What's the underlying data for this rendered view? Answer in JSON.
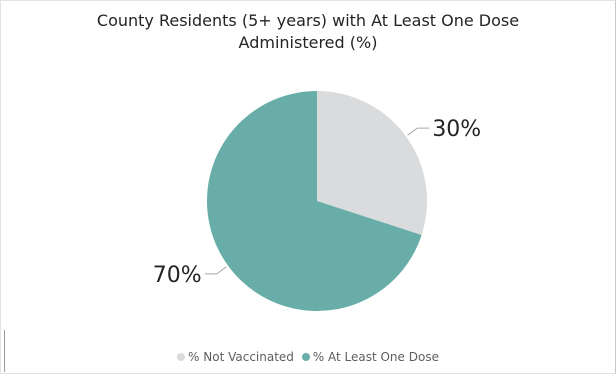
{
  "chart_data": {
    "type": "pie",
    "title_lines": [
      "County Residents (5+ years) with At Least One Dose",
      "Administered (%)"
    ],
    "slices": [
      {
        "label": "% Not Vaccinated",
        "value": 30,
        "data_label": "30%",
        "color": "#d9dbdd"
      },
      {
        "label": "% At Least One Dose",
        "value": 70,
        "data_label": "70%",
        "color": "#69ada9"
      }
    ],
    "start_angle_deg": 0,
    "legend_position": "bottom-center",
    "grid": false
  }
}
